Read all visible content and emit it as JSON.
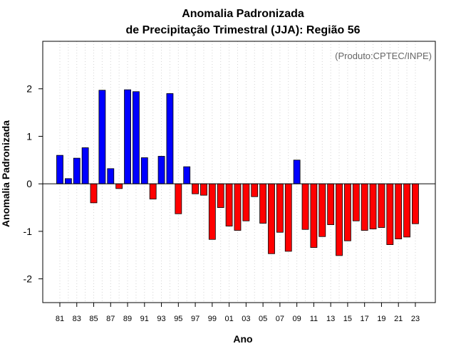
{
  "chart_data": {
    "type": "bar",
    "title": "Anomalia Padronizada",
    "subtitle": "de Precipitação Trimestral (JJA): Região 56",
    "xlabel": "Ano",
    "ylabel": "Anomalia Padronizada",
    "credit": "(Produto:CPTEC/INPE)",
    "ylim": [
      -2.5,
      3.0
    ],
    "yticks": [
      -2,
      -1,
      0,
      1,
      2
    ],
    "xtick_labels": [
      "81",
      "83",
      "85",
      "87",
      "89",
      "91",
      "93",
      "95",
      "97",
      "99",
      "01",
      "03",
      "05",
      "07",
      "09",
      "11",
      "13",
      "15",
      "17",
      "19",
      "21",
      "23"
    ],
    "positive_color": "#0000ff",
    "negative_color": "#ff0000",
    "categories": [
      "1981",
      "1982",
      "1983",
      "1984",
      "1985",
      "1986",
      "1987",
      "1988",
      "1989",
      "1990",
      "1991",
      "1992",
      "1993",
      "1994",
      "1995",
      "1996",
      "1997",
      "1998",
      "1999",
      "2000",
      "2001",
      "2002",
      "2003",
      "2004",
      "2005",
      "2006",
      "2007",
      "2008",
      "2009",
      "2010",
      "2011",
      "2012",
      "2013",
      "2014",
      "2015",
      "2016",
      "2017",
      "2018",
      "2019",
      "2020",
      "2021",
      "2022",
      "2023"
    ],
    "values": [
      0.6,
      0.11,
      0.54,
      0.76,
      -0.4,
      1.97,
      0.32,
      -0.1,
      1.98,
      1.94,
      0.55,
      -0.32,
      0.58,
      1.9,
      -0.63,
      0.36,
      -0.21,
      -0.24,
      -1.17,
      -0.5,
      -0.89,
      -0.98,
      -0.78,
      -0.27,
      -0.83,
      -1.47,
      -1.02,
      -1.42,
      0.5,
      -0.96,
      -1.34,
      -1.11,
      -0.86,
      -1.51,
      -1.2,
      -0.78,
      -0.98,
      -0.95,
      -0.92,
      -1.28,
      -1.16,
      -1.12,
      -0.84
    ]
  }
}
